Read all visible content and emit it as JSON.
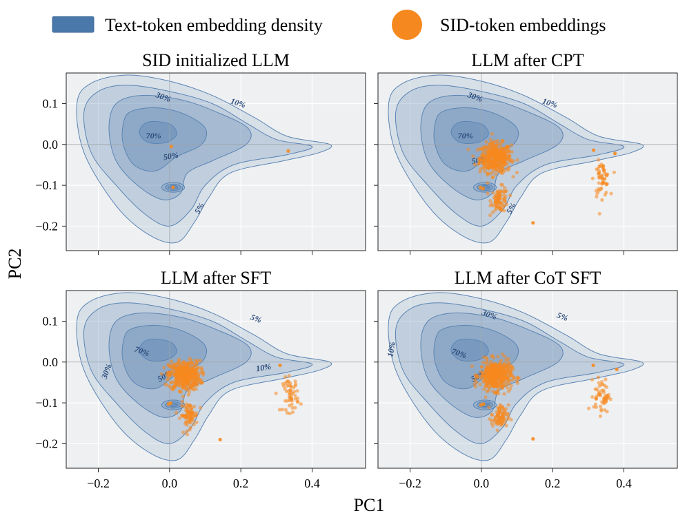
{
  "legend": {
    "density_label": "Text-token embedding density",
    "sid_label": "SID-token embeddings"
  },
  "axis": {
    "xlabel": "PC1",
    "ylabel": "PC2"
  },
  "colors": {
    "density": "#4a78aa",
    "density_line": "#5a84b4",
    "sid": "#f5891f",
    "panel_bg": "#eff0f2",
    "crosshair": "#9aa0a8"
  },
  "chart_data": {
    "type": "scatter",
    "xlim": [
      -0.29,
      0.55
    ],
    "ylim": [
      -0.26,
      0.175
    ],
    "xticks": [
      -0.2,
      0.0,
      0.2,
      0.4
    ],
    "yticks": [
      0.1,
      0.0,
      -0.1,
      -0.2
    ],
    "xtick_labels": [
      "−0.2",
      "0.0",
      "0.2",
      "0.4"
    ],
    "ytick_labels": [
      "0.1",
      "0.0",
      "−0.1",
      "−0.2"
    ],
    "grid": true,
    "legend_position": "top",
    "density_levels": [
      "5%",
      "10%",
      "30%",
      "50%",
      "70%"
    ],
    "panels": [
      {
        "title": "SID initialized LLM",
        "contour_labels": [
          "30%",
          "10%",
          "70%",
          "50%",
          "5%"
        ],
        "sid_clusters": [
          {
            "cx": 0.01,
            "cy": -0.105,
            "sx": 0.002,
            "sy": 0.002,
            "n": 1
          },
          {
            "cx": 0.333,
            "cy": -0.016,
            "sx": 0.001,
            "sy": 0.001,
            "n": 1
          },
          {
            "cx": 0.005,
            "cy": -0.005,
            "sx": 0.001,
            "sy": 0.001,
            "n": 1
          }
        ]
      },
      {
        "title": "LLM after CPT",
        "contour_labels": [
          "30%",
          "10%",
          "70%",
          "50%",
          "5%"
        ],
        "sid_clusters": [
          {
            "cx": 0.04,
            "cy": -0.033,
            "sx": 0.022,
            "sy": 0.018,
            "n": 420
          },
          {
            "cx": 0.052,
            "cy": -0.135,
            "sx": 0.012,
            "sy": 0.015,
            "n": 80
          },
          {
            "cx": 0.338,
            "cy": -0.085,
            "sx": 0.011,
            "sy": 0.021,
            "n": 55
          },
          {
            "cx": 0.0,
            "cy": -0.105,
            "sx": 0.003,
            "sy": 0.003,
            "n": 2
          },
          {
            "cx": 0.315,
            "cy": -0.014,
            "sx": 0.002,
            "sy": 0.002,
            "n": 1
          },
          {
            "cx": 0.145,
            "cy": -0.192,
            "sx": 0.002,
            "sy": 0.002,
            "n": 1
          },
          {
            "cx": 0.375,
            "cy": -0.022,
            "sx": 0.002,
            "sy": 0.002,
            "n": 1
          }
        ]
      },
      {
        "title": "LLM after SFT",
        "contour_labels": [
          "5%",
          "70%",
          "30%",
          "50%",
          "10%"
        ],
        "sid_clusters": [
          {
            "cx": 0.042,
            "cy": -0.033,
            "sx": 0.022,
            "sy": 0.018,
            "n": 420
          },
          {
            "cx": 0.055,
            "cy": -0.13,
            "sx": 0.012,
            "sy": 0.015,
            "n": 80
          },
          {
            "cx": 0.34,
            "cy": -0.08,
            "sx": 0.011,
            "sy": 0.021,
            "n": 55
          },
          {
            "cx": 0.0,
            "cy": -0.102,
            "sx": 0.003,
            "sy": 0.003,
            "n": 2
          },
          {
            "cx": 0.31,
            "cy": -0.008,
            "sx": 0.002,
            "sy": 0.002,
            "n": 1
          },
          {
            "cx": 0.142,
            "cy": -0.19,
            "sx": 0.002,
            "sy": 0.002,
            "n": 1
          }
        ]
      },
      {
        "title": "LLM after CoT SFT",
        "contour_labels": [
          "30%",
          "5%",
          "10%",
          "70%",
          "50%"
        ],
        "sid_clusters": [
          {
            "cx": 0.04,
            "cy": -0.033,
            "sx": 0.022,
            "sy": 0.018,
            "n": 420
          },
          {
            "cx": 0.052,
            "cy": -0.135,
            "sx": 0.012,
            "sy": 0.015,
            "n": 80
          },
          {
            "cx": 0.338,
            "cy": -0.082,
            "sx": 0.011,
            "sy": 0.021,
            "n": 55
          },
          {
            "cx": 0.0,
            "cy": -0.102,
            "sx": 0.003,
            "sy": 0.003,
            "n": 2
          },
          {
            "cx": 0.314,
            "cy": -0.008,
            "sx": 0.002,
            "sy": 0.002,
            "n": 1
          },
          {
            "cx": 0.145,
            "cy": -0.188,
            "sx": 0.002,
            "sy": 0.002,
            "n": 1
          },
          {
            "cx": 0.38,
            "cy": -0.018,
            "sx": 0.002,
            "sy": 0.002,
            "n": 1
          }
        ]
      }
    ]
  }
}
